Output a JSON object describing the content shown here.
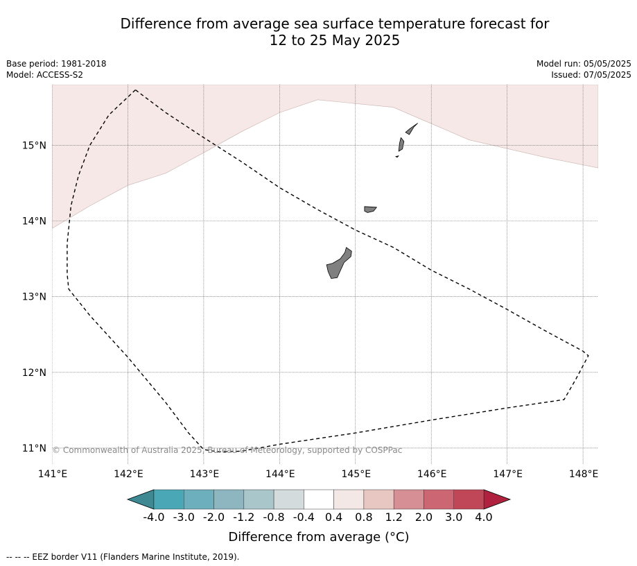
{
  "title_line1": "Difference from average sea surface temperature forecast for",
  "title_line2": "12 to 25 May 2025",
  "meta": {
    "base_period": "Base period: 1981-2018",
    "model": "Model: ACCESS-S2",
    "model_run": "Model run: 05/05/2025",
    "issued": "Issued: 07/05/2025"
  },
  "map": {
    "lon_range": [
      141.0,
      148.2
    ],
    "lat_range": [
      10.78,
      15.8
    ],
    "lon_ticks": [
      {
        "value": 141,
        "label": "141°E"
      },
      {
        "value": 142,
        "label": "142°E"
      },
      {
        "value": 143,
        "label": "143°E"
      },
      {
        "value": 144,
        "label": "144°E"
      },
      {
        "value": 145,
        "label": "145°E"
      },
      {
        "value": 146,
        "label": "146°E"
      },
      {
        "value": 147,
        "label": "147°E"
      },
      {
        "value": 148,
        "label": "148°E"
      }
    ],
    "lat_ticks": [
      {
        "value": 15,
        "label": "15°N"
      },
      {
        "value": 14,
        "label": "14°N"
      },
      {
        "value": 13,
        "label": "13°N"
      },
      {
        "value": 12,
        "label": "12°N"
      },
      {
        "value": 11,
        "label": "11°N"
      }
    ],
    "anomaly_region": {
      "category": "0.4 to 0.8",
      "color": "#f5e8e6",
      "boundary": [
        [
          141.0,
          13.9
        ],
        [
          141.5,
          14.2
        ],
        [
          142.0,
          14.47
        ],
        [
          142.5,
          14.63
        ],
        [
          143.0,
          14.9
        ],
        [
          143.5,
          15.18
        ],
        [
          144.0,
          15.43
        ],
        [
          144.5,
          15.6
        ],
        [
          145.5,
          15.5
        ],
        [
          146.5,
          15.07
        ],
        [
          147.5,
          14.84
        ],
        [
          148.2,
          14.7
        ],
        [
          148.2,
          15.8
        ],
        [
          141.0,
          15.8
        ]
      ]
    },
    "eez_border": [
      [
        142.1,
        15.73
      ],
      [
        141.75,
        15.4
      ],
      [
        141.5,
        15.0
      ],
      [
        141.35,
        14.6
      ],
      [
        141.25,
        14.2
      ],
      [
        141.2,
        13.7
      ],
      [
        141.2,
        13.3
      ],
      [
        141.22,
        13.1
      ],
      [
        141.5,
        12.75
      ],
      [
        142.0,
        12.2
      ],
      [
        142.5,
        11.6
      ],
      [
        142.8,
        11.2
      ],
      [
        143.0,
        10.98
      ],
      [
        143.2,
        10.95
      ],
      [
        143.5,
        10.96
      ],
      [
        144.0,
        11.05
      ],
      [
        145.0,
        11.2
      ],
      [
        146.0,
        11.37
      ],
      [
        147.0,
        11.53
      ],
      [
        147.75,
        11.64
      ],
      [
        147.9,
        11.9
      ],
      [
        148.07,
        12.22
      ],
      [
        148.0,
        12.28
      ],
      [
        147.5,
        12.55
      ],
      [
        147.0,
        12.83
      ],
      [
        146.5,
        13.1
      ],
      [
        146.0,
        13.35
      ],
      [
        145.5,
        13.65
      ],
      [
        145.0,
        13.88
      ],
      [
        144.5,
        14.15
      ],
      [
        144.0,
        14.44
      ],
      [
        143.5,
        14.78
      ],
      [
        143.0,
        15.1
      ],
      [
        142.5,
        15.43
      ],
      [
        142.1,
        15.73
      ]
    ],
    "land": [
      {
        "name": "guam",
        "points": [
          [
            144.88,
            13.65
          ],
          [
            144.95,
            13.6
          ],
          [
            144.94,
            13.53
          ],
          [
            144.85,
            13.45
          ],
          [
            144.8,
            13.34
          ],
          [
            144.76,
            13.25
          ],
          [
            144.68,
            13.24
          ],
          [
            144.64,
            13.33
          ],
          [
            144.62,
            13.42
          ],
          [
            144.7,
            13.44
          ],
          [
            144.8,
            13.5
          ],
          [
            144.86,
            13.58
          ]
        ]
      },
      {
        "name": "rota",
        "points": [
          [
            145.12,
            14.19
          ],
          [
            145.28,
            14.18
          ],
          [
            145.24,
            14.13
          ],
          [
            145.16,
            14.11
          ],
          [
            145.12,
            14.13
          ]
        ]
      },
      {
        "name": "tinian",
        "points": [
          [
            145.6,
            15.1
          ],
          [
            145.64,
            15.05
          ],
          [
            145.62,
            14.95
          ],
          [
            145.57,
            14.92
          ],
          [
            145.58,
            15.02
          ]
        ]
      },
      {
        "name": "saipan",
        "points": [
          [
            145.72,
            15.22
          ],
          [
            145.82,
            15.29
          ],
          [
            145.77,
            15.24
          ],
          [
            145.71,
            15.14
          ],
          [
            145.66,
            15.17
          ]
        ]
      },
      {
        "name": "aguijan",
        "points": [
          [
            145.53,
            14.85
          ],
          [
            145.57,
            14.86
          ],
          [
            145.55,
            14.84
          ]
        ]
      }
    ],
    "copyright": "© Commonwealth of Australia 2025, Bureau of Meteorology, supported by COSPPac"
  },
  "colorbar": {
    "title": "Difference from average (°C)",
    "under_color": "#3f8993",
    "over_color": "#b0213f",
    "bins": [
      "#4aa7b6",
      "#6eafbd",
      "#8db6c1",
      "#a9c6cb",
      "#d3dbdd",
      "#ffffff",
      "#f4e8e6",
      "#e8c6c2",
      "#d68f95",
      "#cc6673",
      "#c04757"
    ],
    "labels": [
      "-4.0",
      "-3.0",
      "-2.0",
      "-1.2",
      "-0.8",
      "-0.4",
      "0.4",
      "0.8",
      "1.2",
      "2.0",
      "3.0",
      "4.0"
    ]
  },
  "footer": "--  --  -- EEZ border V11 (Flanders Marine Institute, 2019)."
}
